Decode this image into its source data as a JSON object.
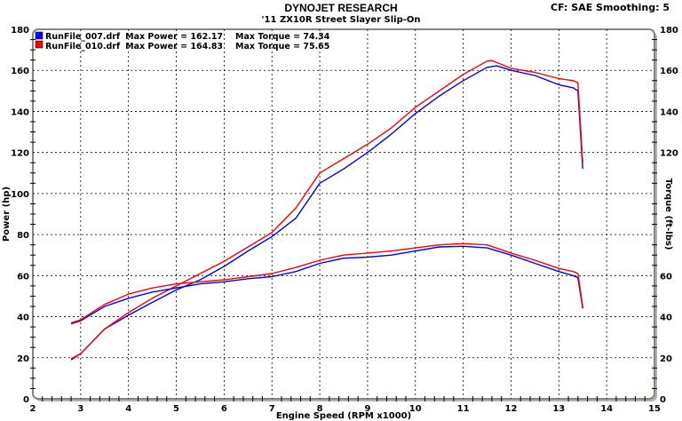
{
  "header": {
    "title": "DYNOJET RESEARCH",
    "subtitle": "'11 ZX10R Street Slayer Slip-On",
    "settings": "CF: SAE  Smoothing: 5"
  },
  "legend": [
    {
      "file": "RunFile_007.drf",
      "power_label": "Max Power = 162.17",
      "torque_label": "Max Torque = 74.34",
      "color": "#0000ff"
    },
    {
      "file": "RunFile_010.drf",
      "power_label": "Max Power = 164.83",
      "torque_label": "Max Torque = 75.65",
      "color": "#ff0000"
    }
  ],
  "chart_data": {
    "type": "line",
    "title": "DYNOJET RESEARCH",
    "xlabel": "Engine Speed (RPM x1000)",
    "ylabel": "Power (hp)",
    "y2label": "Torque (ft-lbs)",
    "xlim": [
      2,
      15
    ],
    "ylim": [
      0,
      180
    ],
    "y2lim": [
      0,
      180
    ],
    "xticks": [
      2,
      3,
      4,
      5,
      6,
      7,
      8,
      9,
      10,
      11,
      12,
      13,
      14,
      15
    ],
    "yticks": [
      0,
      20,
      40,
      60,
      80,
      100,
      120,
      140,
      160,
      180
    ],
    "grid": true,
    "legend_position": "top-left",
    "series": [
      {
        "name": "RunFile_007.drf",
        "quantity": "power",
        "color": "#0000ff",
        "x": [
          2.8,
          3,
          3.5,
          4,
          4.5,
          5,
          5.5,
          6,
          6.5,
          7,
          7.5,
          8,
          8.5,
          9,
          9.5,
          10,
          10.5,
          11,
          11.5,
          11.7,
          12,
          12.5,
          13,
          13.3,
          13.4,
          13.5
        ],
        "y": [
          19,
          22,
          34,
          40.7,
          47,
          53,
          58,
          64.5,
          72,
          79,
          88,
          105,
          112,
          120,
          129,
          139,
          147.5,
          155,
          161.5,
          162.2,
          160,
          157.5,
          153,
          151.5,
          150,
          112
        ]
      },
      {
        "name": "RunFile_010.drf",
        "quantity": "power",
        "color": "#ff0000",
        "x": [
          2.8,
          3,
          3.5,
          4,
          4.5,
          5,
          5.5,
          6,
          6.5,
          7,
          7.5,
          8,
          8.5,
          9,
          9.5,
          10,
          10.5,
          11,
          11.5,
          11.6,
          12,
          12.5,
          13,
          13.3,
          13.4,
          13.5
        ],
        "y": [
          19.5,
          22,
          34,
          42,
          49,
          55,
          61,
          67,
          74,
          81,
          93,
          110,
          117,
          124,
          132,
          142,
          150,
          158,
          164.5,
          164.8,
          161,
          159,
          156,
          155,
          154,
          115
        ]
      },
      {
        "name": "RunFile_007.drf",
        "quantity": "torque",
        "color": "#0000ff",
        "x": [
          2.8,
          3,
          3.5,
          4,
          4.5,
          5,
          5.5,
          6,
          6.5,
          7,
          7.5,
          8,
          8.5,
          9,
          9.5,
          10,
          10.5,
          11,
          11.5,
          12,
          12.5,
          13,
          13.3,
          13.4,
          13.5
        ],
        "y": [
          36.5,
          38,
          45,
          49,
          52,
          54,
          56,
          57,
          58.5,
          59.5,
          62,
          66,
          68.5,
          69,
          70,
          72,
          74,
          74.3,
          73.5,
          70,
          66,
          62,
          60,
          59,
          44
        ]
      },
      {
        "name": "RunFile_010.drf",
        "quantity": "torque",
        "color": "#ff0000",
        "x": [
          2.8,
          3,
          3.5,
          4,
          4.5,
          5,
          5.5,
          6,
          6.5,
          7,
          7.5,
          8,
          8.5,
          9,
          9.5,
          10,
          10.5,
          11,
          11.5,
          12,
          12.5,
          13,
          13.3,
          13.4,
          13.5
        ],
        "y": [
          37,
          38.5,
          46,
          51,
          54,
          56,
          57,
          58,
          59.5,
          61,
          64,
          67.5,
          70,
          71,
          72,
          73.5,
          75,
          75.6,
          75,
          71,
          67.5,
          63.5,
          62,
          61,
          45
        ]
      }
    ]
  }
}
